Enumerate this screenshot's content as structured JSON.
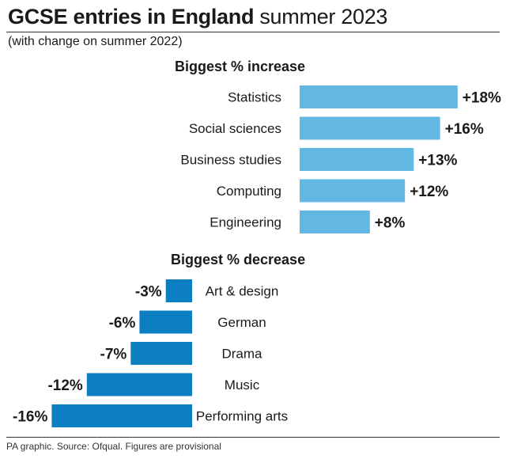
{
  "header": {
    "title_bold": "GCSE entries in England",
    "title_light": "summer 2023",
    "subtitle": "(with change on summer 2022)"
  },
  "increase_title": "Biggest % increase",
  "decrease_title": "Biggest % decrease",
  "footer": {
    "source": "PA graphic. Source: Ofqual. Figures are provisional"
  },
  "colors": {
    "increase_bar": "#63b7e3",
    "decrease_bar": "#0b7fc2"
  },
  "chart_data": [
    {
      "type": "bar",
      "orientation": "horizontal",
      "title": "Biggest % increase",
      "categories": [
        "Statistics",
        "Social sciences",
        "Business studies",
        "Computing",
        "Engineering"
      ],
      "values": [
        18,
        16,
        13,
        12,
        8
      ],
      "labels": [
        "+18%",
        "+16%",
        "+13%",
        "+12%",
        "+8%"
      ],
      "unit": "%"
    },
    {
      "type": "bar",
      "orientation": "horizontal",
      "title": "Biggest % decrease",
      "categories": [
        "Art & design",
        "German",
        "Drama",
        "Music",
        "Performing arts"
      ],
      "values": [
        -3,
        -6,
        -7,
        -12,
        -16
      ],
      "labels": [
        "-3%",
        "-6%",
        "-7%",
        "-12%",
        "-16%"
      ],
      "unit": "%"
    }
  ]
}
